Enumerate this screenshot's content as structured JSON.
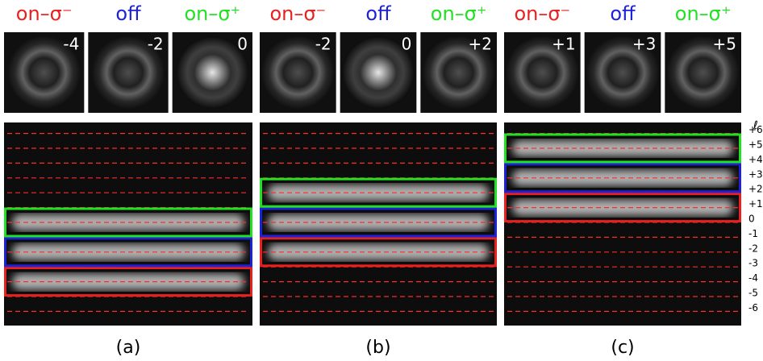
{
  "panels": [
    {
      "caption": "(a)",
      "modes": [
        {
          "value": -4,
          "label": "-4"
        },
        {
          "value": -2,
          "label": "-2"
        },
        0
      ]
    },
    {
      "caption": "(b)",
      "modes": [
        {
          "value": -2,
          "label": "-2"
        },
        0,
        {
          "value": 2,
          "label": "+2"
        }
      ]
    },
    {
      "caption": "(c)",
      "modes": [
        {
          "value": 1,
          "label": "+1"
        },
        {
          "value": 3,
          "label": "+3"
        },
        {
          "value": 5,
          "label": "+5"
        }
      ]
    }
  ],
  "headers": [
    {
      "text": "on–σ⁻",
      "color": "#e8211f"
    },
    {
      "text": "off",
      "color": "#1d22d8"
    },
    {
      "text": "on–σ⁺",
      "color": "#22e022"
    }
  ],
  "axis": {
    "label": "ℓ",
    "ticks": [
      {
        "value": 6,
        "label": "+6"
      },
      {
        "value": 5,
        "label": "+5"
      },
      {
        "value": 4,
        "label": "+4"
      },
      {
        "value": 3,
        "label": "+3"
      },
      {
        "value": 2,
        "label": "+2"
      },
      {
        "value": 1,
        "label": "+1"
      },
      0,
      -1,
      -2,
      -3,
      -4,
      -5,
      -6
    ]
  }
}
